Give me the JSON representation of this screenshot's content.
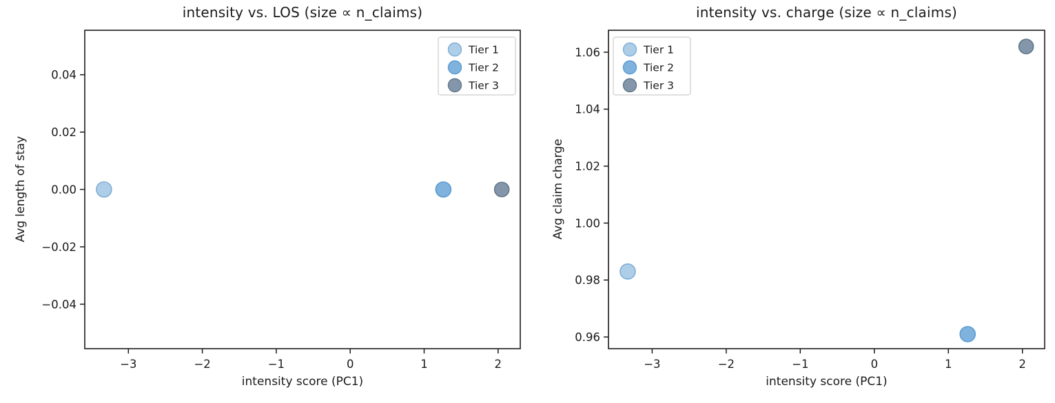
{
  "figure": {
    "background": "#ffffff",
    "ink": "#1a1a1a",
    "spine_color": "#1a1a1a",
    "legend_border": "#cccccc",
    "legend_fill": "#ffffff"
  },
  "chart_data": [
    {
      "type": "scatter",
      "title": "intensity vs. LOS (size ∝ n_claims)",
      "xlabel": "intensity score (PC1)",
      "ylabel": "Avg length of stay",
      "xlim": [
        -3.59,
        2.3
      ],
      "ylim": [
        -0.0555,
        0.0555
      ],
      "grid": false,
      "legend": {
        "position": "upper right"
      },
      "xticks": [
        {
          "v": -3,
          "label": "−3"
        },
        {
          "v": -2,
          "label": "−2"
        },
        {
          "v": -1,
          "label": "−1"
        },
        {
          "v": 0,
          "label": "0"
        },
        {
          "v": 1,
          "label": "1"
        },
        {
          "v": 2,
          "label": "2"
        }
      ],
      "yticks": [
        {
          "v": 0.04,
          "label": "0.04"
        },
        {
          "v": 0.02,
          "label": "0.02"
        },
        {
          "v": 0.0,
          "label": "0.00"
        },
        {
          "v": -0.02,
          "label": "−0.02"
        },
        {
          "v": -0.04,
          "label": "−0.04"
        }
      ],
      "series": [
        {
          "name": "Tier 1",
          "fill": "#aecee8",
          "edge": "#7fadd6",
          "marker_radius": 11,
          "points": [
            [
              -3.33,
              0.0
            ]
          ]
        },
        {
          "name": "Tier 2",
          "fill": "#7fb2dc",
          "edge": "#5b9bd0",
          "marker_radius": 11,
          "points": [
            [
              1.26,
              0.0
            ]
          ]
        },
        {
          "name": "Tier 3",
          "fill": "#8497aa",
          "edge": "#60758a",
          "marker_radius": 10.5,
          "points": [
            [
              2.05,
              0.0
            ]
          ]
        }
      ]
    },
    {
      "type": "scatter",
      "title": "intensity vs. charge (size ∝ n_claims)",
      "xlabel": "intensity score (PC1)",
      "ylabel": "Avg claim charge",
      "xlim": [
        -3.59,
        2.3
      ],
      "ylim": [
        0.9559,
        1.0677
      ],
      "grid": false,
      "legend": {
        "position": "upper left"
      },
      "xticks": [
        {
          "v": -3,
          "label": "−3"
        },
        {
          "v": -2,
          "label": "−2"
        },
        {
          "v": -1,
          "label": "−1"
        },
        {
          "v": 0,
          "label": "0"
        },
        {
          "v": 1,
          "label": "1"
        },
        {
          "v": 2,
          "label": "2"
        }
      ],
      "yticks": [
        {
          "v": 0.96,
          "label": "0.96"
        },
        {
          "v": 0.98,
          "label": "0.98"
        },
        {
          "v": 1.0,
          "label": "1.00"
        },
        {
          "v": 1.02,
          "label": "1.02"
        },
        {
          "v": 1.04,
          "label": "1.04"
        },
        {
          "v": 1.06,
          "label": "1.06"
        }
      ],
      "series": [
        {
          "name": "Tier 1",
          "fill": "#aecee8",
          "edge": "#7fadd6",
          "marker_radius": 11,
          "points": [
            [
              -3.33,
              0.983
            ]
          ]
        },
        {
          "name": "Tier 2",
          "fill": "#7fb2dc",
          "edge": "#5b9bd0",
          "marker_radius": 11,
          "points": [
            [
              1.26,
              0.961
            ]
          ]
        },
        {
          "name": "Tier 3",
          "fill": "#8497aa",
          "edge": "#60758a",
          "marker_radius": 10.5,
          "points": [
            [
              2.05,
              1.062
            ]
          ]
        }
      ]
    }
  ]
}
